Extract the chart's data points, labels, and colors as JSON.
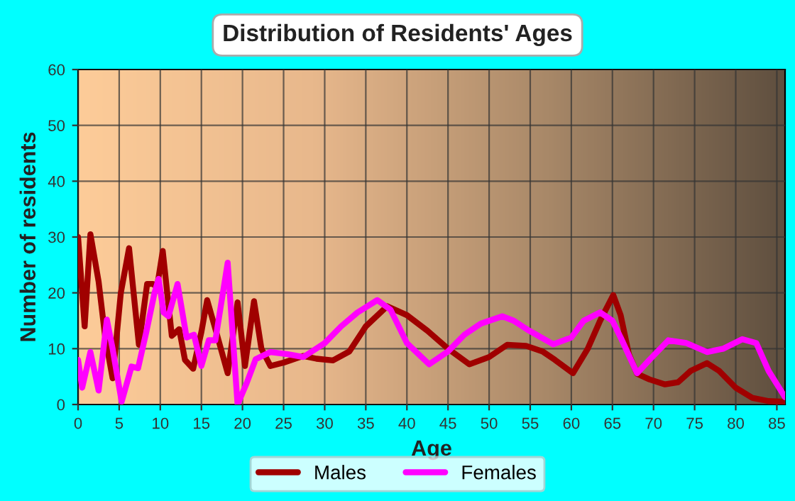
{
  "chart_data": {
    "type": "line",
    "title": "Distribution of Residents' Ages",
    "xlabel": "Age",
    "ylabel": "Number of residents",
    "xlim": [
      0,
      86
    ],
    "ylim": [
      0,
      60
    ],
    "xticks": [
      0,
      5,
      10,
      15,
      20,
      25,
      30,
      35,
      40,
      45,
      50,
      55,
      60,
      65,
      70,
      75,
      80,
      85
    ],
    "yticks": [
      0,
      10,
      20,
      30,
      40,
      50,
      60
    ],
    "grid": true,
    "legend": "bottom",
    "marker": "none",
    "line_style": "solid",
    "series": [
      {
        "name": "Males",
        "color": "#a00000",
        "x": [
          0,
          0.8,
          1.5,
          2.5,
          3.3,
          4.2,
          5.2,
          6.2,
          7.4,
          8.4,
          9.1,
          9.6,
          10.3,
          11.4,
          12.3,
          13,
          14,
          15,
          15.7,
          16.8,
          18.2,
          19.4,
          20.3,
          21.4,
          22.3,
          23.4,
          25,
          27.4,
          29,
          31,
          33,
          35,
          37.6,
          40,
          42.5,
          45,
          47.6,
          50,
          52.2,
          54.5,
          56.5,
          58,
          60.2,
          62,
          63.5,
          65.1,
          66,
          67,
          68,
          69.5,
          71.4,
          73,
          74.5,
          76.5,
          78,
          80,
          82,
          84,
          86
        ],
        "values": [
          30,
          14,
          30.5,
          22,
          12,
          4.7,
          20,
          28,
          10.7,
          21.6,
          21.6,
          21,
          27.5,
          12.3,
          13.5,
          8,
          6.4,
          13,
          18.7,
          13,
          5.6,
          18.3,
          6.9,
          18.5,
          10,
          6.9,
          7.5,
          8.7,
          8.2,
          7.9,
          9.5,
          14,
          17.6,
          16,
          13.2,
          10,
          7.2,
          8.5,
          10.7,
          10.5,
          9.5,
          8,
          5.6,
          10,
          15,
          19.6,
          16,
          9,
          5.5,
          4.5,
          3.6,
          4,
          6,
          7.4,
          6,
          3,
          1.2,
          0.6,
          0.5
        ]
      },
      {
        "name": "Females",
        "color": "#ff00ff",
        "x": [
          0,
          0.5,
          1.5,
          2.5,
          3.5,
          4.2,
          5.3,
          6.5,
          7.3,
          8.3,
          9.3,
          9.8,
          10.4,
          11,
          12.1,
          13.2,
          14.1,
          15,
          15.9,
          16.7,
          18.2,
          19.4,
          20.5,
          21.6,
          23.4,
          25.5,
          27.4,
          30,
          32,
          34,
          36.4,
          38,
          40,
          42.7,
          45,
          47,
          49,
          51.6,
          53,
          54.9,
          57.8,
          60,
          61.5,
          63.5,
          65,
          66,
          68,
          69.5,
          71.8,
          74,
          76.5,
          78.5,
          80.8,
          82.5,
          84,
          86
        ],
        "values": [
          8,
          3,
          9.4,
          2.5,
          15.2,
          10,
          0.5,
          6.8,
          6.5,
          13,
          20,
          22.5,
          16.5,
          15.8,
          21.6,
          12,
          12.5,
          6.9,
          11.5,
          11.5,
          25.4,
          0,
          3.8,
          8.1,
          9.4,
          9,
          8.5,
          11,
          14,
          16.5,
          18.7,
          17,
          11,
          7.2,
          9.5,
          12.5,
          14.5,
          15.8,
          15,
          13.2,
          10.8,
          12,
          15,
          16.5,
          15,
          12,
          5.6,
          8,
          11.5,
          11,
          9.4,
          10,
          11.7,
          11,
          6,
          1.3
        ]
      }
    ]
  }
}
